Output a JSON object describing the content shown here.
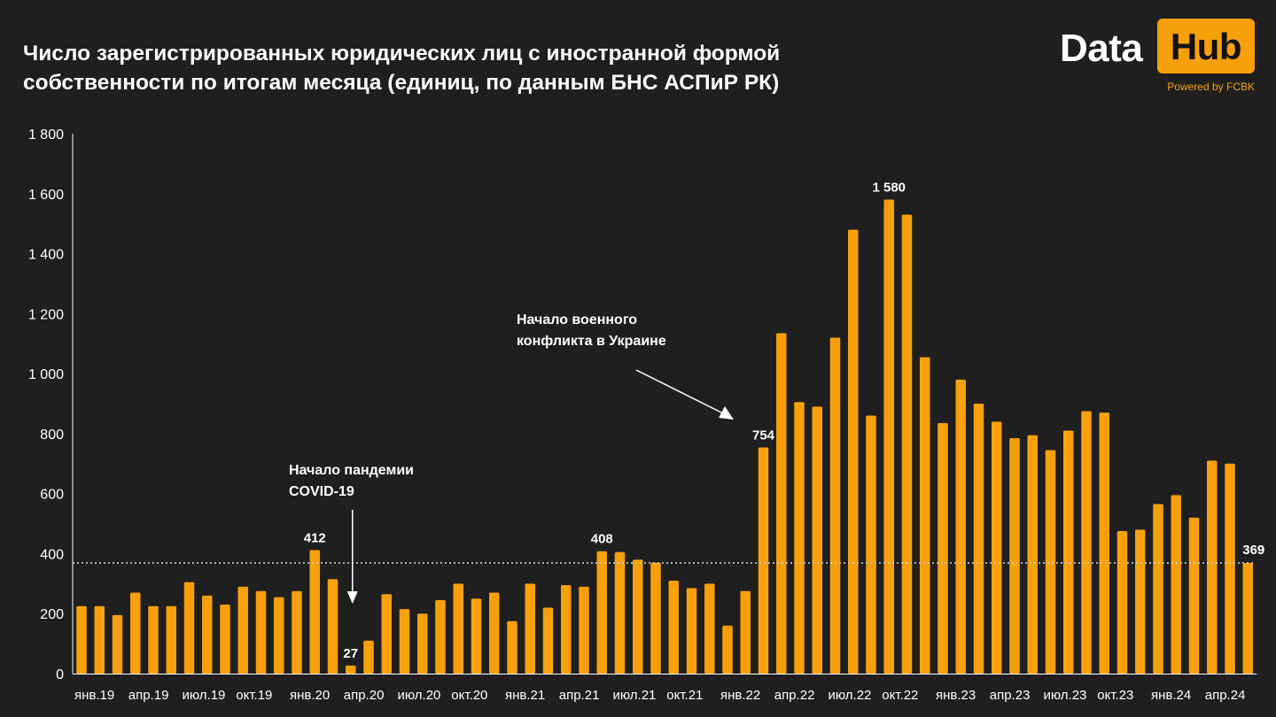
{
  "title": {
    "line1": "Число зарегистрированных юридических лиц с иностранной формой",
    "line2": "собственности  по итогам месяца (единиц, по данным БНС АСПиР РК)"
  },
  "logo": {
    "word": "Data",
    "box": "Hub",
    "powered": "Powered by FCBK"
  },
  "colors": {
    "background": "#1f1f1f",
    "bar": "#f7a00c",
    "text": "#ffffff",
    "reference_line": "#cfcfcf"
  },
  "chart_data": {
    "type": "bar",
    "ylim": [
      0,
      1800
    ],
    "yticks": [
      "0",
      "200",
      "400",
      "600",
      "800",
      "1 000",
      "1 200",
      "1 400",
      "1 600",
      "1 800"
    ],
    "ytick_values": [
      0,
      200,
      400,
      600,
      800,
      1000,
      1200,
      1400,
      1600,
      1800
    ],
    "xtick_labels": [
      "янв.19",
      "апр.19",
      "июл.19",
      "окт.19",
      "янв.20",
      "апр.20",
      "июл.20",
      "окт.20",
      "янв.21",
      "апр.21",
      "июл.21",
      "окт.21",
      "янв.22",
      "апр.22",
      "июл.22",
      "окт.22",
      "янв.23",
      "апр.23",
      "июл.23",
      "окт.23",
      "янв.24",
      "апр.24"
    ],
    "values": [
      225,
      225,
      195,
      270,
      225,
      225,
      305,
      260,
      230,
      290,
      275,
      255,
      275,
      412,
      315,
      27,
      110,
      265,
      215,
      200,
      245,
      300,
      250,
      270,
      175,
      300,
      220,
      295,
      290,
      408,
      405,
      380,
      370,
      310,
      285,
      300,
      160,
      275,
      754,
      1135,
      905,
      890,
      1120,
      1480,
      860,
      1580,
      1530,
      1055,
      835,
      980,
      900,
      840,
      785,
      795,
      745,
      810,
      875,
      870,
      475,
      480,
      565,
      595,
      520,
      710,
      700,
      369
    ],
    "data_labels": [
      {
        "index": 13,
        "text": "412"
      },
      {
        "index": 15,
        "text": "27"
      },
      {
        "index": 29,
        "text": "408"
      },
      {
        "index": 38,
        "text": "754"
      },
      {
        "index": 45,
        "text": "1 580"
      },
      {
        "index": 65,
        "text": "369"
      }
    ],
    "reference_line": {
      "value": 369,
      "style": "dotted"
    },
    "annotations": [
      {
        "lines": [
          "Начало пандемии",
          "COVID-19"
        ],
        "points_to_index": 15
      },
      {
        "lines": [
          "Начало военного",
          "конфликта в Украине"
        ],
        "points_to_index": 37
      }
    ],
    "legend": "none",
    "grid": false
  }
}
